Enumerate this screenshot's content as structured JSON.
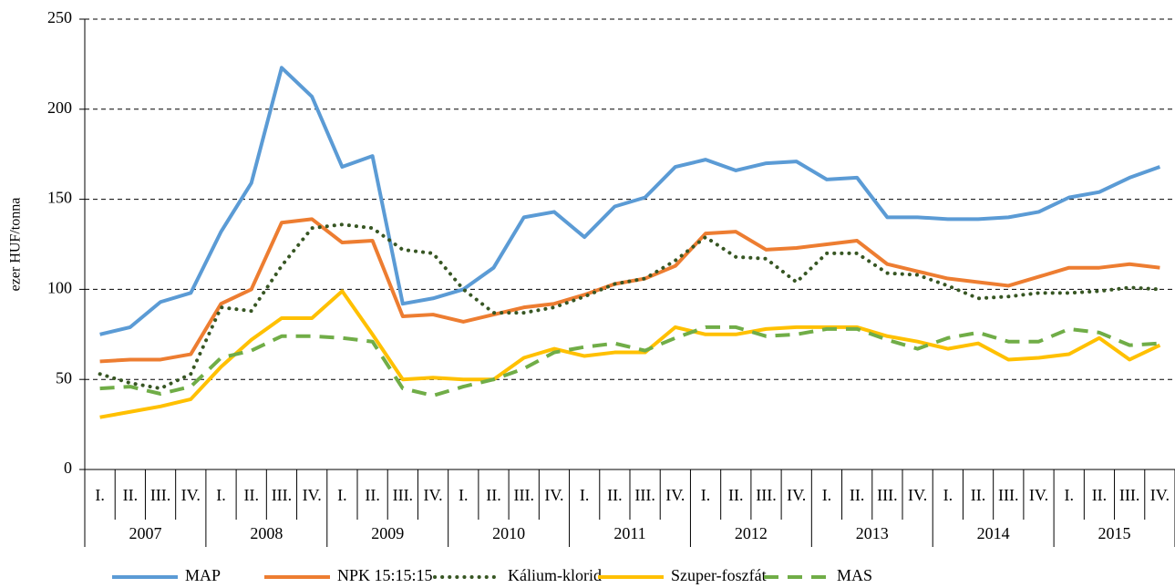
{
  "chart_data": {
    "type": "line",
    "y_label": "ezer HUF/tonna",
    "categories": [
      "I.",
      "II.",
      "III.",
      "IV.",
      "I.",
      "II.",
      "III.",
      "IV.",
      "I.",
      "II.",
      "III.",
      "IV.",
      "I.",
      "II.",
      "III.",
      "IV.",
      "I.",
      "II.",
      "III.",
      "IV.",
      "I.",
      "II.",
      "III.",
      "IV.",
      "I.",
      "II.",
      "III.",
      "IV.",
      "I.",
      "II.",
      "III.",
      "IV.",
      "I.",
      "II.",
      "III.",
      "IV."
    ],
    "groups": [
      "2007",
      "2008",
      "2009",
      "2010",
      "2011",
      "2012",
      "2013",
      "2014",
      "2015"
    ],
    "series": [
      {
        "name": "MAP",
        "color": "#5b9bd5",
        "style": "solid",
        "values": [
          75,
          79,
          93,
          98,
          132,
          159,
          223,
          207,
          168,
          174,
          92,
          95,
          100,
          112,
          140,
          143,
          129,
          146,
          151,
          168,
          172,
          166,
          170,
          171,
          161,
          162,
          140,
          140,
          139,
          139,
          140,
          143,
          151,
          154,
          162,
          168
        ]
      },
      {
        "name": "NPK 15:15:15",
        "color": "#ed7d31",
        "style": "solid",
        "values": [
          60,
          61,
          61,
          64,
          92,
          100,
          137,
          139,
          126,
          127,
          85,
          86,
          82,
          86,
          90,
          92,
          97,
          103,
          106,
          113,
          131,
          132,
          122,
          123,
          125,
          127,
          114,
          110,
          106,
          104,
          102,
          107,
          112,
          112,
          114,
          112
        ]
      },
      {
        "name": "Kálium-klorid",
        "color": "#375623",
        "style": "dotted",
        "values": [
          53,
          48,
          45,
          53,
          90,
          88,
          113,
          134,
          136,
          134,
          122,
          120,
          100,
          87,
          87,
          90,
          96,
          103,
          106,
          116,
          129,
          118,
          117,
          104,
          120,
          120,
          109,
          108,
          102,
          95,
          96,
          98,
          98,
          99,
          101,
          100
        ]
      },
      {
        "name": "Szuper-foszfát",
        "color": "#ffc000",
        "style": "solid",
        "values": [
          29,
          32,
          35,
          39,
          57,
          72,
          84,
          84,
          99,
          75,
          50,
          51,
          50,
          50,
          62,
          67,
          63,
          65,
          65,
          79,
          75,
          75,
          78,
          79,
          79,
          79,
          74,
          71,
          67,
          70,
          61,
          62,
          64,
          73,
          61,
          69
        ]
      },
      {
        "name": "MAS",
        "color": "#70ad47",
        "style": "dashed",
        "values": [
          45,
          46,
          42,
          46,
          62,
          66,
          74,
          74,
          73,
          71,
          45,
          41,
          46,
          50,
          56,
          65,
          68,
          70,
          66,
          73,
          79,
          79,
          74,
          75,
          78,
          78,
          72,
          67,
          73,
          76,
          71,
          71,
          78,
          76,
          69,
          70
        ]
      }
    ],
    "ylim": [
      0,
      250
    ],
    "yticks": [
      0,
      50,
      100,
      150,
      200,
      250
    ],
    "grid": true,
    "legend": "bottom"
  }
}
